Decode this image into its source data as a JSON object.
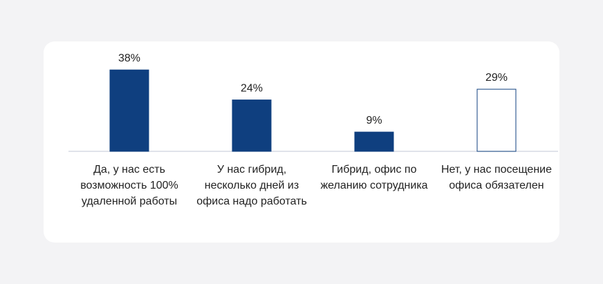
{
  "chart_data": {
    "type": "bar",
    "categories": [
      "Да, у нас есть возможность 100% удаленной работы",
      "У нас гибрид, несколько дней из офиса надо работать",
      "Гибрид, офис по желанию сотрудника",
      "Нет, у нас посещение офиса обязателен"
    ],
    "values": [
      38,
      24,
      9,
      29
    ],
    "value_labels": [
      "38%",
      "24%",
      "9%",
      "29%"
    ],
    "colors": [
      "#0f3f7f",
      "#0f3f7f",
      "#0f3f7f",
      "#ffffff"
    ],
    "edge_color": "#0f3f7f"
  }
}
